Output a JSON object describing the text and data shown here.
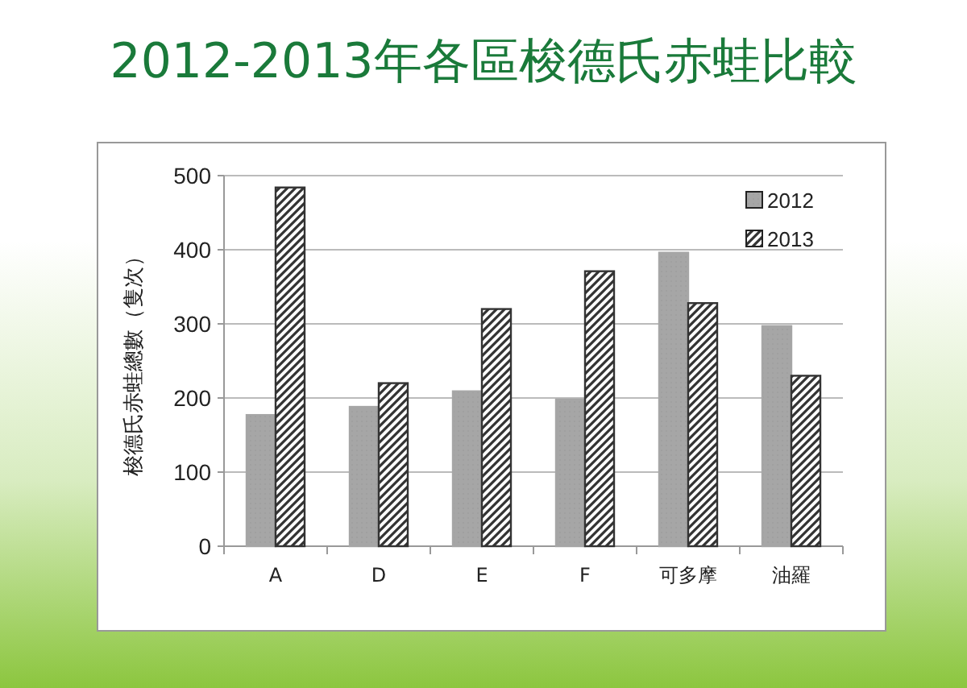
{
  "chart_data": {
    "type": "bar",
    "title": "2012-2013年各區梭德氏赤蛙比較",
    "ylabel": "梭德氏赤蛙總數（隻次）",
    "categories": [
      "A",
      "D",
      "E",
      "F",
      "可多摩",
      "油羅"
    ],
    "series": [
      {
        "name": "2012",
        "color": "#a6a6a6",
        "values": [
          177,
          188,
          209,
          198,
          396,
          297
        ]
      },
      {
        "name": "2013",
        "color": "#333333",
        "values": [
          484,
          220,
          320,
          371,
          328,
          230
        ]
      }
    ],
    "ylim": [
      0,
      500
    ],
    "yticks": [
      0,
      100,
      200,
      300,
      400,
      500
    ],
    "grid": "y",
    "legend": "top right"
  }
}
